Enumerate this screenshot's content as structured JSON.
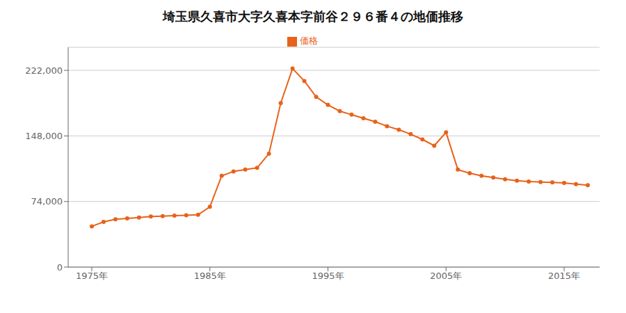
{
  "chart_data": {
    "type": "line",
    "title": "埼玉県久喜市大字久喜本字前谷２９６番４の地価推移",
    "x": [
      1975,
      1976,
      1977,
      1978,
      1979,
      1980,
      1981,
      1982,
      1983,
      1984,
      1985,
      1986,
      1987,
      1988,
      1989,
      1990,
      1991,
      1992,
      1993,
      1994,
      1995,
      1996,
      1997,
      1998,
      1999,
      2000,
      2001,
      2002,
      2003,
      2004,
      2005,
      2006,
      2007,
      2008,
      2009,
      2010,
      2011,
      2012,
      2013,
      2014,
      2015,
      2016,
      2017
    ],
    "series": [
      {
        "name": "価格",
        "color": "#e8621a",
        "marker": "circle",
        "values": [
          46000,
          51000,
          54000,
          55000,
          56000,
          57000,
          57500,
          58000,
          58500,
          59000,
          68000,
          103000,
          108000,
          110000,
          112000,
          128000,
          185000,
          224000,
          210000,
          192000,
          183000,
          176000,
          172000,
          168000,
          164000,
          159000,
          155000,
          150000,
          144000,
          137000,
          152000,
          110000,
          106000,
          103000,
          101000,
          99000,
          97500,
          96500,
          96000,
          95500,
          95000,
          93500,
          92500
        ]
      }
    ],
    "xlim": [
      1973,
      2018
    ],
    "xticks": [
      {
        "value": 1975,
        "label": "1975年"
      },
      {
        "value": 1985,
        "label": "1985年"
      },
      {
        "value": 1995,
        "label": "1995年"
      },
      {
        "value": 2005,
        "label": "2005年"
      },
      {
        "value": 2015,
        "label": "2015年"
      }
    ],
    "ylim": [
      0,
      248000
    ],
    "yticks": [
      0,
      {
        "value": 74000,
        "label": "74,000"
      },
      {
        "value": 148000,
        "label": "148,000"
      },
      {
        "value": 222000,
        "label": "222,000"
      }
    ],
    "grid": "y",
    "legend": "top"
  }
}
